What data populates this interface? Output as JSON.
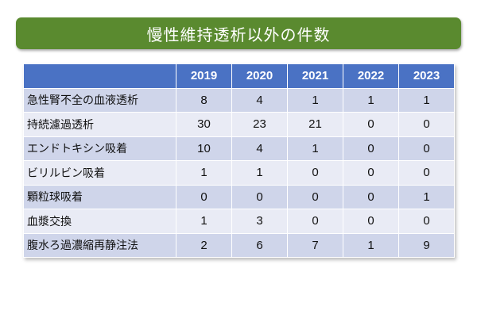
{
  "title": "慢性維持透析以外の件数",
  "table": {
    "years": [
      "2019",
      "2020",
      "2021",
      "2022",
      "2023"
    ],
    "rows": [
      {
        "label": "急性腎不全の血液透析",
        "values": [
          "8",
          "4",
          "1",
          "1",
          "1"
        ]
      },
      {
        "label": "持続濾過透析",
        "values": [
          "30",
          "23",
          "21",
          "0",
          "0"
        ]
      },
      {
        "label": "エンドトキシン吸着",
        "values": [
          "10",
          "4",
          "1",
          "0",
          "0"
        ]
      },
      {
        "label": "ビリルビン吸着",
        "values": [
          "1",
          "1",
          "0",
          "0",
          "0"
        ]
      },
      {
        "label": "顆粒球吸着",
        "values": [
          "0",
          "0",
          "0",
          "0",
          "1"
        ]
      },
      {
        "label": "血漿交換",
        "values": [
          "1",
          "3",
          "0",
          "0",
          "0"
        ]
      },
      {
        "label": "腹水ろ過濃縮再静注法",
        "values": [
          "2",
          "6",
          "7",
          "1",
          "9"
        ]
      }
    ]
  },
  "colors": {
    "title_banner": "#5a8a2f",
    "header_row": "#4a72c4",
    "row_odd": "#cfd5ea",
    "row_even": "#e9ebf5"
  }
}
